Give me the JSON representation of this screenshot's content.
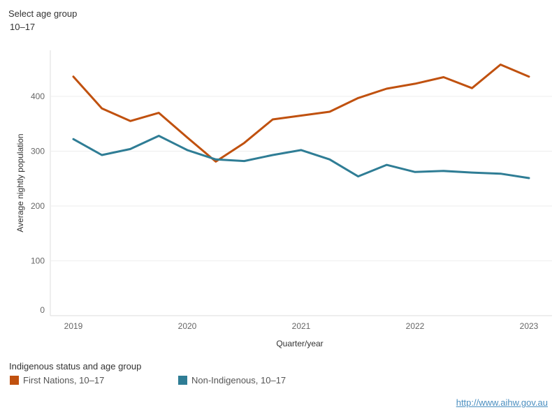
{
  "filter": {
    "label": "Select age group",
    "value": "10–17"
  },
  "legend": {
    "title": "Indigenous status and age group"
  },
  "source_link": "http://www.aihw.gov.au",
  "colors": {
    "first_nations": "#c0510f",
    "non_indigenous": "#2f7d95",
    "grid": "#eeeeee"
  },
  "chart_data": {
    "type": "line",
    "title": "",
    "xlabel": "Quarter/year",
    "ylabel": "Average nightly population",
    "x": [
      "2019-Q1",
      "2019-Q2",
      "2019-Q3",
      "2019-Q4",
      "2020-Q1",
      "2020-Q2",
      "2020-Q3",
      "2020-Q4",
      "2021-Q1",
      "2021-Q2",
      "2021-Q3",
      "2021-Q4",
      "2022-Q1",
      "2022-Q2",
      "2022-Q3",
      "2022-Q4",
      "2023-Q1"
    ],
    "xticks": [
      "2019",
      "2020",
      "2021",
      "2022",
      "2023"
    ],
    "yticks": [
      0,
      100,
      200,
      300,
      400
    ],
    "ylim": [
      0,
      480
    ],
    "grid": true,
    "legend_position": "bottom-left",
    "series": [
      {
        "name": "First Nations, 10–17",
        "values": [
          436,
          378,
          355,
          370,
          325,
          281,
          315,
          358,
          365,
          372,
          397,
          414,
          423,
          435,
          415,
          458,
          436
        ]
      },
      {
        "name": "Non-Indigenous, 10–17",
        "values": [
          322,
          293,
          304,
          328,
          302,
          285,
          282,
          293,
          302,
          285,
          254,
          275,
          262,
          264,
          261,
          259,
          251
        ]
      }
    ]
  }
}
